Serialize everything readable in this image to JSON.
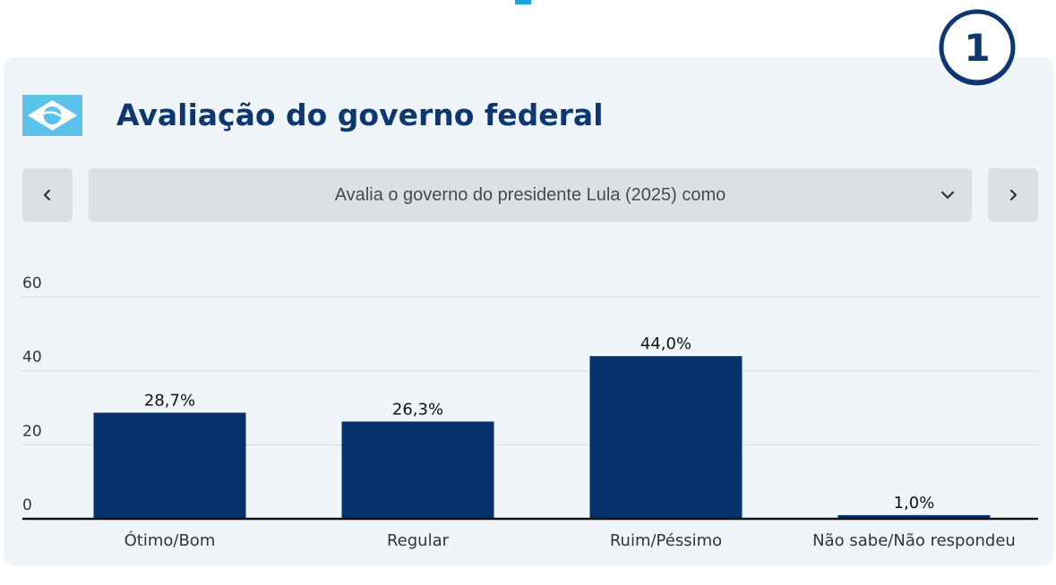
{
  "header": {
    "title": "Avaliação do governo federal",
    "badge_number": "1"
  },
  "selector": {
    "label": "Avalia o governo do presidente Lula (2025) como"
  },
  "colors": {
    "bar": "#06336e",
    "title": "#0c3772",
    "flag_bg": "#5bc3ea"
  },
  "icons": {
    "prev": "chevron-left-icon",
    "next": "chevron-right-icon",
    "dropdown": "chevron-down-icon",
    "flag": "flag-icon"
  },
  "chart_data": {
    "type": "bar",
    "categories": [
      "Ótimo/Bom",
      "Regular",
      "Ruim/Péssimo",
      "Não sabe/Não respondeu"
    ],
    "values": [
      28.7,
      26.3,
      44.0,
      1.0
    ],
    "value_labels": [
      "28,7%",
      "26,3%",
      "44,0%",
      "1,0%"
    ],
    "ylim": [
      0,
      60
    ],
    "yticks": [
      0,
      20,
      40,
      60
    ],
    "grid": true
  }
}
